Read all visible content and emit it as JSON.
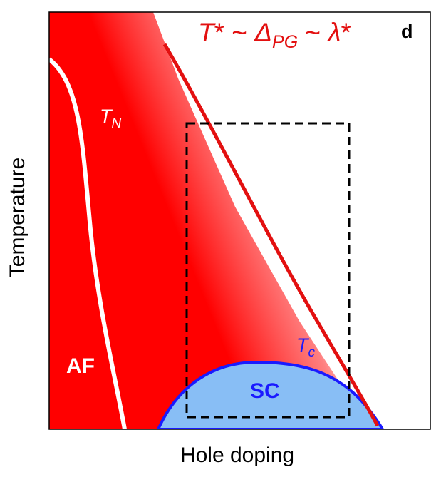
{
  "panel_letter": "d",
  "x_axis_label": "Hole doping",
  "y_axis_label": "Temperature",
  "region_labels": {
    "af": "AF",
    "sc": "SC"
  },
  "curve_labels": {
    "tn": {
      "main": "T",
      "sub": "N"
    },
    "tc": {
      "main": "T",
      "sub": "c"
    },
    "tstar": {
      "t": "T",
      "star1": "*",
      "tilde1": " ~ ",
      "delta": "Δ",
      "sub": "PG",
      "tilde2": " ~ ",
      "lambda": "λ",
      "star2": "*"
    }
  },
  "colors": {
    "pseudogap_fill": "#ff0000",
    "tstar_line": "#e31010",
    "tn_line": "#ffffff",
    "tc_line": "#1a1aff",
    "sc_fill": "#88bef5",
    "dashed_box": "#000000",
    "axis_frame": "#000000"
  }
}
